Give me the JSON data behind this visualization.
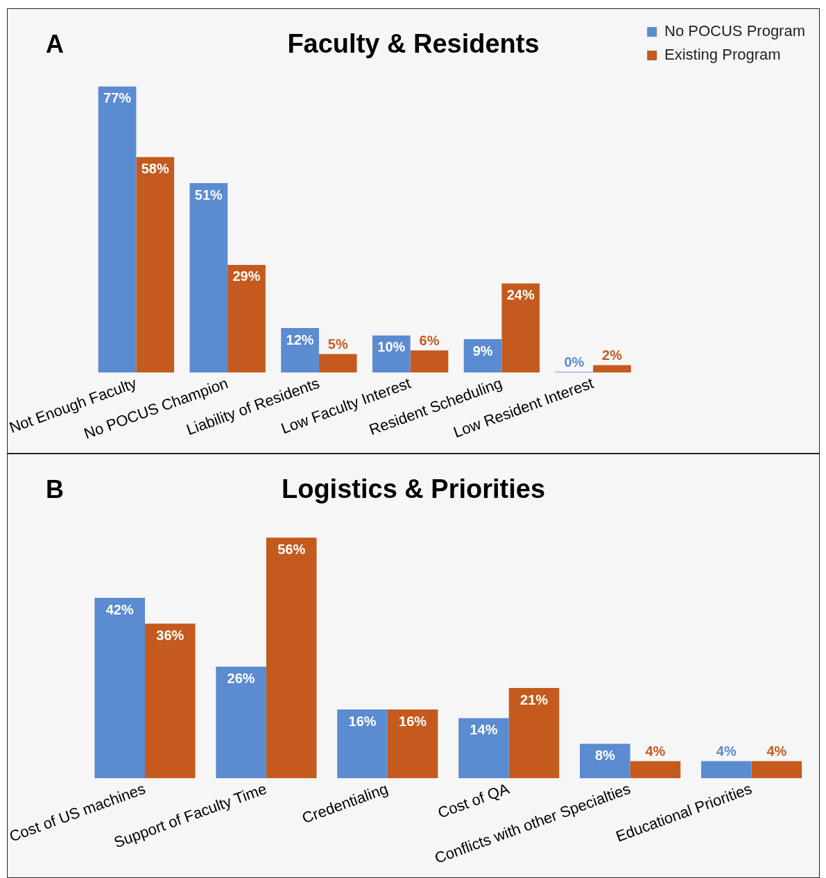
{
  "chart_data": [
    {
      "type": "bar",
      "title": "Faculty & Residents",
      "annotations": [
        "A"
      ],
      "categories": [
        "Not Enough Faculty",
        "No POCUS Champion",
        "Liability of Residents",
        "Low Faculty Interest",
        "Resident Scheduling",
        "Low Resident Interest"
      ],
      "series": [
        {
          "name": "No POCUS Program",
          "color": "#5b8bd0",
          "values": [
            77,
            51,
            12,
            10,
            9,
            0
          ],
          "value_labels": [
            "77%",
            "51%",
            "12%",
            "10%",
            "9%",
            "0%"
          ]
        },
        {
          "name": "Existing Program",
          "color": "#c55a1e",
          "values": [
            58,
            29,
            5,
            6,
            24,
            2
          ],
          "value_labels": [
            "58%",
            "29%",
            "5%",
            "6%",
            "24%",
            "2%"
          ]
        }
      ],
      "legend": "top right",
      "grid": false
    },
    {
      "type": "bar",
      "title": "Logistics & Priorities",
      "annotations": [
        "B"
      ],
      "categories": [
        "Cost of US machines",
        "Support of Faculty Time",
        "Credentialing",
        "Cost of QA",
        "Conflicts with other Specialties",
        "Educational Priorities"
      ],
      "series": [
        {
          "color": "#5b8bd0",
          "values": [
            42,
            26,
            16,
            14,
            8,
            4
          ],
          "value_labels": [
            "42%",
            "26%",
            "16%",
            "14%",
            "8%",
            "4%"
          ]
        },
        {
          "color": "#c55a1e",
          "values": [
            36,
            56,
            16,
            21,
            4,
            4
          ],
          "value_labels": [
            "36%",
            "56%",
            "16%",
            "21%",
            "4%",
            "4%"
          ]
        }
      ],
      "legend": false,
      "grid": false
    }
  ]
}
